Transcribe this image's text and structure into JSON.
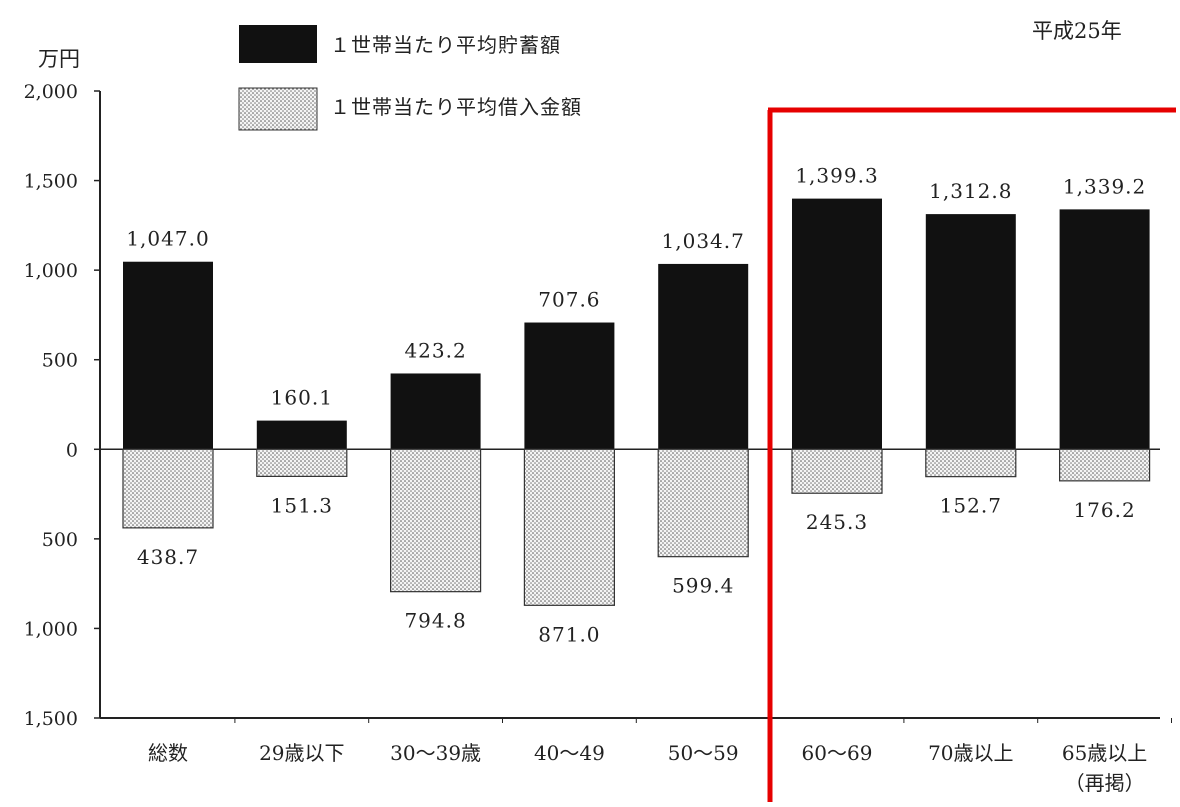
{
  "chart_data": {
    "type": "bar",
    "title": "",
    "year_label": "平成25年",
    "unit_label": "万円",
    "categories": [
      "総数",
      "29歳以下",
      "30～39歳",
      "40～49",
      "50～59",
      "60～69",
      "70歳以上",
      "65歳以上"
    ],
    "category_sublabels": [
      "",
      "",
      "",
      "",
      "",
      "",
      "",
      "（再掲）"
    ],
    "series": [
      {
        "name": "１世帯当たり平均貯蓄額",
        "values": [
          1047.0,
          160.1,
          423.2,
          707.6,
          1034.7,
          1399.3,
          1312.8,
          1339.2
        ],
        "labels": [
          "1,047.0",
          "160.1",
          "423.2",
          "707.6",
          "1,034.7",
          "1,399.3",
          "1,312.8",
          "1,339.2"
        ],
        "color": "#111111",
        "direction": "up"
      },
      {
        "name": "１世帯当たり平均借入金額",
        "values": [
          438.7,
          151.3,
          794.8,
          871.0,
          599.4,
          245.3,
          152.7,
          176.2
        ],
        "labels": [
          "438.7",
          "151.3",
          "794.8",
          "871.0",
          "599.4",
          "245.3",
          "152.7",
          "176.2"
        ],
        "pattern": "dotted",
        "direction": "down"
      }
    ],
    "ylim": [
      -1500,
      2000
    ],
    "yticks": [
      2000,
      1500,
      1000,
      500,
      0,
      -500,
      -1000,
      -1500
    ],
    "ytick_labels": [
      "2,000",
      "1,500",
      "1,000",
      "500",
      "0",
      "500",
      "1,000",
      "1,500"
    ],
    "grid": false,
    "legend_position": "top-left",
    "highlight": {
      "categories": [
        "60～69",
        "70歳以上",
        "65歳以上"
      ],
      "color": "#e60000"
    }
  }
}
